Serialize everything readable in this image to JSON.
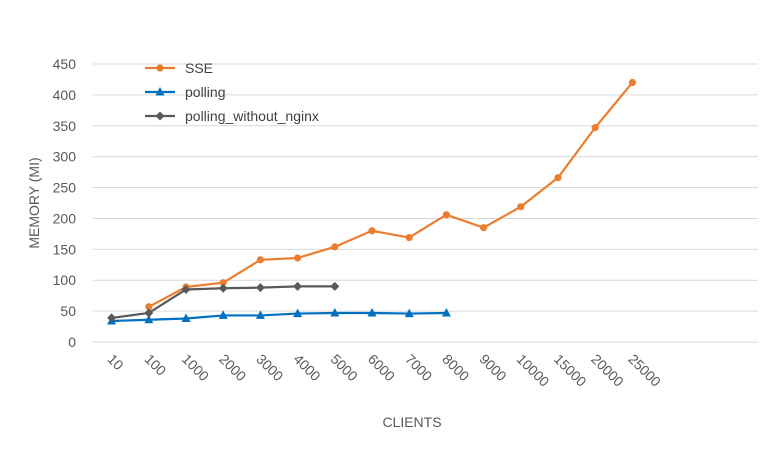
{
  "chart_data": {
    "type": "line",
    "title": "",
    "xlabel": "CLIENTS",
    "ylabel": "MEMORY (MI)",
    "categories": [
      "10",
      "100",
      "1000",
      "2000",
      "3000",
      "4000",
      "5000",
      "6000",
      "7000",
      "8000",
      "9000",
      "10000",
      "15000",
      "20000",
      "25000"
    ],
    "ylim": [
      0,
      450
    ],
    "yticks": [
      0,
      50,
      100,
      150,
      200,
      250,
      300,
      350,
      400,
      450
    ],
    "grid": "horizontal",
    "legend_position": "top-left",
    "series": [
      {
        "name": "SSE",
        "color": "#ED7D31",
        "marker": "circle",
        "values": [
          null,
          57,
          89,
          96,
          133,
          136,
          154,
          180,
          169,
          206,
          185,
          219,
          266,
          347,
          420
        ]
      },
      {
        "name": "polling",
        "color": "#0070C0",
        "marker": "triangle",
        "values": [
          34,
          36,
          38,
          43,
          43,
          46,
          47,
          47,
          46,
          47,
          null,
          null,
          null,
          null,
          null
        ]
      },
      {
        "name": "polling_without_nginx",
        "color": "#595959",
        "marker": "diamond",
        "values": [
          39,
          47,
          85,
          87,
          88,
          90,
          90,
          null,
          null,
          null,
          null,
          null,
          null,
          null,
          null
        ]
      }
    ]
  }
}
